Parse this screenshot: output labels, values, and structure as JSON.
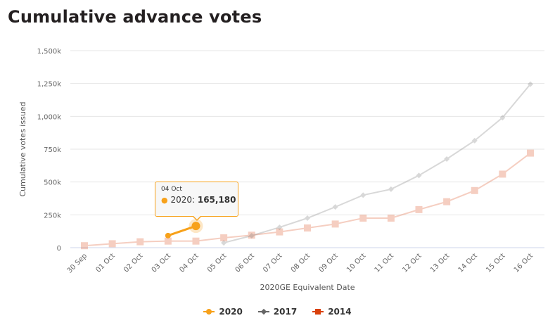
{
  "page": {
    "title": "Cumulative advance votes"
  },
  "tooltip": {
    "date": "04 Oct",
    "series": "2020",
    "separator": ": ",
    "value": "165,180",
    "bullet": "●"
  },
  "legend": [
    {
      "label": "2020",
      "color": "#f7a11a",
      "marker": "circle"
    },
    {
      "label": "2017",
      "color": "#666666",
      "marker": "diamond"
    },
    {
      "label": "2014",
      "color": "#d9400b",
      "marker": "square"
    }
  ],
  "chart_data": {
    "type": "line",
    "title": "Cumulative advance votes",
    "xlabel": "2020GE Equivalent Date",
    "ylabel": "Cumulative votes issued",
    "ylim": [
      0,
      1500000
    ],
    "yticks": [
      0,
      250000,
      500000,
      750000,
      1000000,
      1250000,
      1500000
    ],
    "ytick_labels": [
      "0",
      "250k",
      "500k",
      "750k",
      "1,000k",
      "1,250k",
      "1,500k"
    ],
    "grid": true,
    "legend_position": "bottom",
    "categories": [
      "30 Sep",
      "01 Oct",
      "02 Oct",
      "03 Oct",
      "04 Oct",
      "05 Oct",
      "06 Oct",
      "07 Oct",
      "08 Oct",
      "09 Oct",
      "10 Oct",
      "11 Oct",
      "12 Oct",
      "13 Oct",
      "14 Oct",
      "15 Oct",
      "16 Oct"
    ],
    "series": [
      {
        "name": "2020",
        "color": "#f7a11a",
        "marker": "circle",
        "highlighted": true,
        "values": [
          null,
          null,
          null,
          92000,
          165180,
          null,
          null,
          null,
          null,
          null,
          null,
          null,
          null,
          null,
          null,
          null,
          null
        ]
      },
      {
        "name": "2017",
        "color": "#666666",
        "marker": "diamond",
        "highlighted": false,
        "values": [
          null,
          null,
          null,
          null,
          null,
          37000,
          91000,
          155000,
          225000,
          310000,
          400000,
          445000,
          550000,
          675000,
          815000,
          990000,
          1245000
        ]
      },
      {
        "name": "2014",
        "color": "#d9400b",
        "marker": "square",
        "highlighted": false,
        "values": [
          15000,
          30000,
          45000,
          50000,
          50000,
          75000,
          95000,
          120000,
          150000,
          180000,
          225000,
          225000,
          290000,
          350000,
          435000,
          560000,
          720000
        ]
      }
    ]
  }
}
